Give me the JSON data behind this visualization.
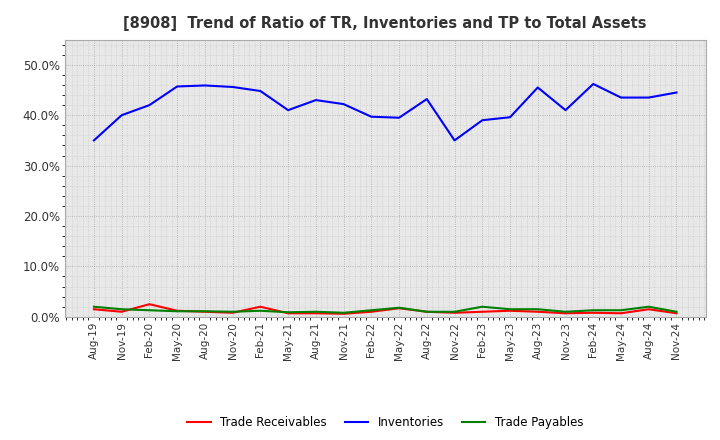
{
  "title": "[8908]  Trend of Ratio of TR, Inventories and TP to Total Assets",
  "x_labels": [
    "Aug-19",
    "Nov-19",
    "Feb-20",
    "May-20",
    "Aug-20",
    "Nov-20",
    "Feb-21",
    "May-21",
    "Aug-21",
    "Nov-21",
    "Feb-22",
    "May-22",
    "Aug-22",
    "Nov-22",
    "Feb-23",
    "May-23",
    "Aug-23",
    "Nov-23",
    "Feb-24",
    "May-24",
    "Aug-24",
    "Nov-24"
  ],
  "inventories": [
    0.35,
    0.4,
    0.42,
    0.457,
    0.459,
    0.456,
    0.448,
    0.41,
    0.43,
    0.422,
    0.397,
    0.395,
    0.432,
    0.35,
    0.39,
    0.396,
    0.455,
    0.41,
    0.462,
    0.435,
    0.435,
    0.445
  ],
  "trade_receivables": [
    0.015,
    0.01,
    0.025,
    0.012,
    0.01,
    0.008,
    0.02,
    0.007,
    0.007,
    0.006,
    0.01,
    0.017,
    0.01,
    0.008,
    0.01,
    0.012,
    0.01,
    0.007,
    0.008,
    0.007,
    0.015,
    0.007
  ],
  "trade_payables": [
    0.02,
    0.015,
    0.013,
    0.011,
    0.011,
    0.01,
    0.012,
    0.009,
    0.01,
    0.008,
    0.013,
    0.018,
    0.01,
    0.01,
    0.02,
    0.015,
    0.015,
    0.01,
    0.013,
    0.013,
    0.02,
    0.01
  ],
  "color_inventories": "#0000FF",
  "color_trade_receivables": "#FF0000",
  "color_trade_payables": "#008000",
  "ylim": [
    0.0,
    0.55
  ],
  "yticks": [
    0.0,
    0.1,
    0.2,
    0.3,
    0.4,
    0.5
  ],
  "background_color": "#FFFFFF",
  "plot_bg_color": "#E8E8E8",
  "grid_color": "#999999",
  "title_color": "#333333",
  "legend_labels": [
    "Trade Receivables",
    "Inventories",
    "Trade Payables"
  ]
}
